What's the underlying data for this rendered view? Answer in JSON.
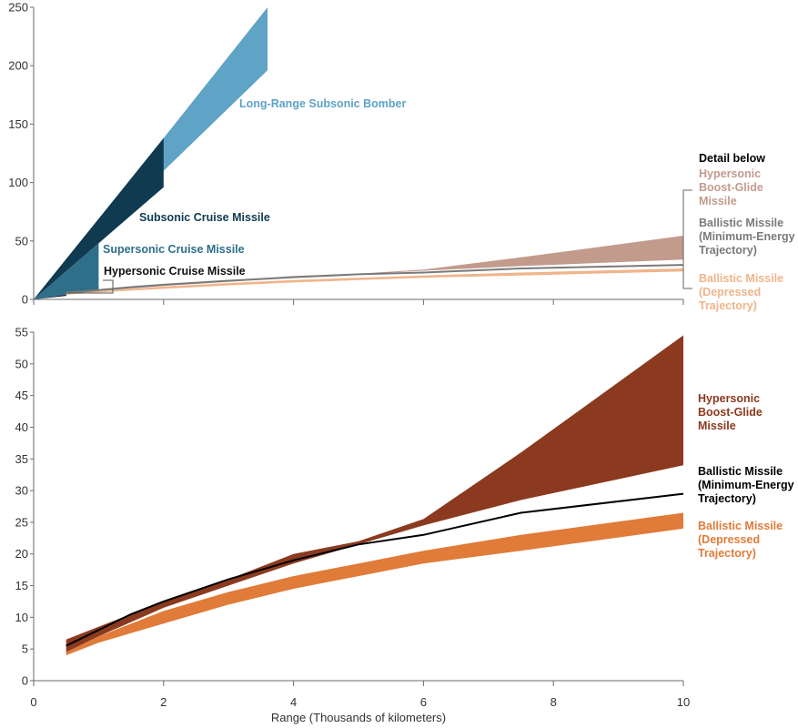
{
  "chart_data": [
    {
      "type": "area",
      "title": "",
      "xlabel": "",
      "ylabel": "",
      "xlim": [
        0,
        10
      ],
      "ylim": [
        0,
        250
      ],
      "x_ticks": [
        0,
        2,
        4,
        6,
        8,
        10
      ],
      "y_ticks": [
        0,
        50,
        100,
        150,
        200,
        250
      ],
      "show_x_tick_labels": false,
      "series": [
        {
          "name": "Long-Range Subsonic Bomber",
          "kind": "band",
          "color": "#5fa3c6",
          "x": [
            0,
            2,
            3.6
          ],
          "lower": [
            0,
            110,
            196
          ],
          "upper": [
            0,
            138,
            250
          ]
        },
        {
          "name": "Subsonic Cruise Missile",
          "kind": "band",
          "color": "#0f3a50",
          "x": [
            0,
            2
          ],
          "lower": [
            0,
            96
          ],
          "upper": [
            0,
            138
          ]
        },
        {
          "name": "Supersonic Cruise Missile",
          "kind": "band",
          "color": "#2e6f8a",
          "x": [
            0,
            0.5,
            1
          ],
          "lower": [
            0,
            4,
            8
          ],
          "upper": [
            0,
            24,
            48
          ]
        },
        {
          "name": "Hypersonic Cruise Missile",
          "kind": "band",
          "color": "#111111",
          "x": [
            0,
            0.5
          ],
          "lower": [
            0,
            3
          ],
          "upper": [
            0,
            4
          ]
        },
        {
          "name": "Hypersonic Boost-Glide Missile",
          "kind": "band",
          "color": "#c29b8c",
          "x": [
            0.5,
            1,
            2,
            3,
            4,
            5,
            6,
            7.5,
            10
          ],
          "lower": [
            4.5,
            7,
            11.5,
            15,
            18.5,
            21.5,
            24.5,
            28.5,
            34
          ],
          "upper": [
            6.5,
            8.5,
            12.5,
            16,
            20,
            22,
            25.5,
            36,
            54.5
          ]
        },
        {
          "name": "Ballistic Missile (Depressed Trajectory)",
          "kind": "band",
          "color": "#f0b48a",
          "x": [
            0.5,
            1,
            2,
            3,
            4,
            5,
            6,
            7.5,
            10
          ],
          "lower": [
            4,
            6,
            9,
            12,
            14.5,
            16.5,
            18.5,
            20.5,
            24
          ],
          "upper": [
            4.5,
            7,
            11,
            14,
            16.5,
            18.5,
            20.5,
            23,
            26.5
          ]
        },
        {
          "name": "Ballistic Missile (Minimum-Energy Trajectory)",
          "kind": "line",
          "color": "#7a7a7a",
          "x": [
            0.5,
            1,
            1.5,
            2,
            3,
            4,
            5,
            6,
            7.5,
            10
          ],
          "y": [
            5.5,
            8,
            10.5,
            12.5,
            16,
            19,
            21.5,
            23,
            26.5,
            29.5
          ]
        }
      ],
      "annotations": [
        {
          "text": "Detail below",
          "color": "#000000"
        }
      ],
      "labels": {
        "bomber": "Long-Range Subsonic Bomber",
        "subsonic": "Subsonic Cruise Missile",
        "supersonic": "Supersonic Cruise Missile",
        "hypersonic_cruise": "Hypersonic Cruise Missile",
        "detail": "Detail below",
        "boost_glide": [
          "Hypersonic",
          "Boost-Glide",
          "Missile"
        ],
        "ballistic_min": [
          "Ballistic Missile",
          "(Minimum-Energy",
          "Trajectory)"
        ],
        "ballistic_dep": [
          "Ballistic Missile",
          "(Depressed",
          "Trajectory)"
        ]
      }
    },
    {
      "type": "area",
      "title": "",
      "xlabel": "Range (Thousands of kilometers)",
      "ylabel": "",
      "xlim": [
        0,
        10
      ],
      "ylim": [
        0,
        55
      ],
      "x_ticks": [
        0,
        2,
        4,
        6,
        8,
        10
      ],
      "y_ticks": [
        0,
        5,
        10,
        15,
        20,
        25,
        30,
        35,
        40,
        45,
        50,
        55
      ],
      "series": [
        {
          "name": "Hypersonic Boost-Glide Missile",
          "kind": "band",
          "color": "#8b3a1f",
          "x": [
            0.5,
            1,
            2,
            3,
            4,
            5,
            6,
            7.5,
            10
          ],
          "lower": [
            4.5,
            7,
            11.5,
            15,
            18.5,
            21.5,
            24.5,
            28.5,
            34
          ],
          "upper": [
            6.5,
            8.5,
            12.5,
            16,
            20,
            22,
            25.5,
            36,
            54.5
          ]
        },
        {
          "name": "Ballistic Missile (Depressed Trajectory)",
          "kind": "band",
          "color": "#e07b39",
          "x": [
            0.5,
            1,
            2,
            3,
            4,
            5,
            6,
            7.5,
            10
          ],
          "lower": [
            4,
            6,
            9,
            12,
            14.5,
            16.5,
            18.5,
            20.5,
            24
          ],
          "upper": [
            4.5,
            7,
            11,
            14,
            16.5,
            18.5,
            20.5,
            23,
            26.5
          ]
        },
        {
          "name": "Ballistic Missile (Minimum-Energy Trajectory)",
          "kind": "line",
          "color": "#000000",
          "x": [
            0.5,
            1,
            1.5,
            2,
            3,
            4,
            5,
            6,
            7.5,
            10
          ],
          "y": [
            5.5,
            8,
            10.5,
            12.5,
            16,
            19,
            21.5,
            23,
            26.5,
            29.5
          ]
        }
      ],
      "labels": {
        "boost_glide": [
          "Hypersonic",
          "Boost-Glide",
          "Missile"
        ],
        "ballistic_min": [
          "Ballistic Missile",
          "(Minimum-Energy",
          "Trajectory)"
        ],
        "ballistic_dep": [
          "Ballistic Missile",
          "(Depressed",
          "Trajectory)"
        ]
      }
    }
  ]
}
